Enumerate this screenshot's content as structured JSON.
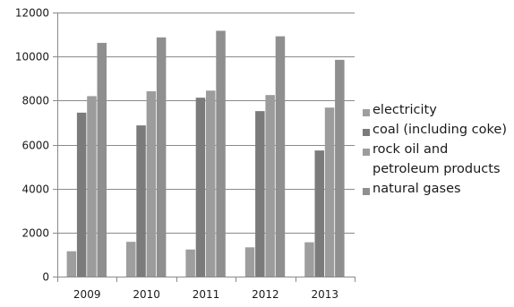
{
  "chart_data": {
    "type": "bar",
    "title": "",
    "xlabel": "",
    "ylabel": "",
    "ylim": [
      0,
      12000
    ],
    "yticks": [
      0,
      2000,
      4000,
      6000,
      8000,
      10000,
      12000
    ],
    "grid": "horizontal",
    "legend_position": "right",
    "categories": [
      "2009",
      "2010",
      "2011",
      "2012",
      "2013"
    ],
    "series": [
      {
        "name": "electricity",
        "color": "#9e9e9e",
        "values": [
          1150,
          1580,
          1230,
          1330,
          1560
        ]
      },
      {
        "name": "coal (including coke)",
        "color": "#7b7b7b",
        "values": [
          7450,
          6870,
          8130,
          7520,
          5730
        ]
      },
      {
        "name": "rock oil and\npetroleum products",
        "color": "#9c9c9c",
        "values": [
          8200,
          8420,
          8450,
          8250,
          7680
        ]
      },
      {
        "name": "natural gases",
        "color": "#8f8f8f",
        "values": [
          10620,
          10870,
          11170,
          10920,
          9850
        ]
      }
    ]
  }
}
